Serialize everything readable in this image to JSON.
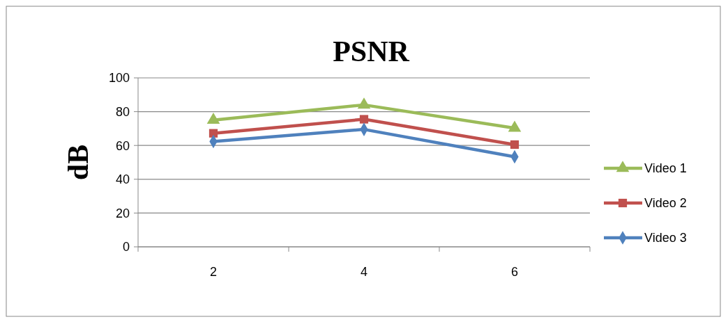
{
  "chart_data": {
    "type": "line",
    "title": "PSNR",
    "ylabel": "dB",
    "categories": [
      "2",
      "4",
      "6"
    ],
    "ylim": [
      0,
      100
    ],
    "yticks": [
      0,
      20,
      40,
      60,
      80,
      100
    ],
    "grid": "y",
    "legend": "right",
    "series": [
      {
        "name": "Video 1",
        "color": "#9bbb59",
        "marker": "triangle",
        "values": [
          75,
          84,
          70.3
        ]
      },
      {
        "name": "Video 2",
        "color": "#c0504d",
        "marker": "square",
        "values": [
          67.2,
          75.5,
          60.5
        ]
      },
      {
        "name": "Video 3",
        "color": "#4f81bd",
        "marker": "diamond",
        "values": [
          62.3,
          69.5,
          53.3
        ]
      }
    ]
  }
}
